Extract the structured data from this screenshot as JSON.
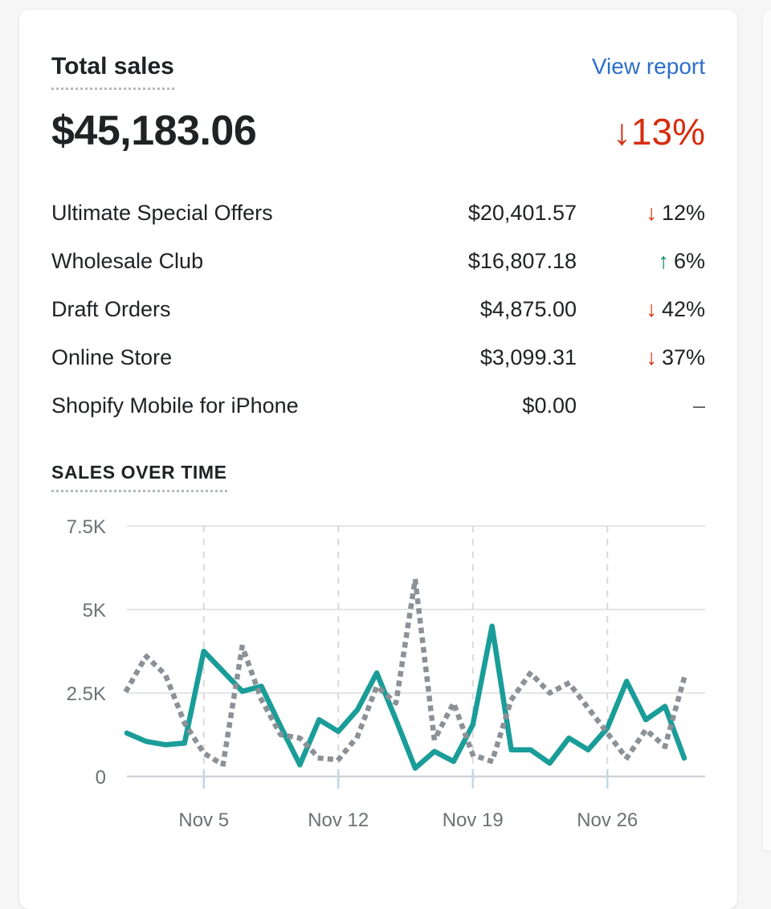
{
  "header": {
    "title": "Total sales",
    "link": "View report"
  },
  "summary": {
    "value": "$45,183.06",
    "arrow": "↓",
    "pct": "13%",
    "trend": "down"
  },
  "rows": [
    {
      "label": "Ultimate Special Offers",
      "value": "$20,401.57",
      "arrow": "↓",
      "pct": "12%",
      "trend": "down"
    },
    {
      "label": "Wholesale Club",
      "value": "$16,807.18",
      "arrow": "↑",
      "pct": "6%",
      "trend": "up"
    },
    {
      "label": "Draft Orders",
      "value": "$4,875.00",
      "arrow": "↓",
      "pct": "42%",
      "trend": "down"
    },
    {
      "label": "Online Store",
      "value": "$3,099.31",
      "arrow": "↓",
      "pct": "37%",
      "trend": "down"
    },
    {
      "label": "Shopify Mobile for iPhone",
      "value": "$0.00",
      "arrow": "",
      "pct": "–",
      "trend": "none"
    }
  ],
  "section": {
    "title": "SALES OVER TIME"
  },
  "colors": {
    "text": "#202223",
    "link": "#2c6ecb",
    "negative": "#d72c0d",
    "positive": "#008060",
    "axis_label": "#6d7175",
    "gridline": "#e4e5e7",
    "axis_line": "#d0d3d7",
    "vertical_gridline": "#d7d9dd",
    "tick": "#bfd9e4",
    "current_line": "#1a9d98",
    "previous_line": "#8b9196"
  },
  "chart_data": {
    "type": "line",
    "title": "SALES OVER TIME",
    "xlabel": "",
    "ylabel": "",
    "x_unit": "day of November",
    "x": [
      1,
      2,
      3,
      4,
      5,
      6,
      7,
      8,
      9,
      10,
      11,
      12,
      13,
      14,
      15,
      16,
      17,
      18,
      19,
      20,
      21,
      22,
      23,
      24,
      25,
      26,
      27,
      28,
      29,
      30
    ],
    "series": [
      {
        "name": "current-period-sales",
        "style": "solid",
        "color": "#1a9d98",
        "values": [
          1300,
          1050,
          950,
          1000,
          3750,
          3150,
          2550,
          2700,
          1500,
          350,
          1700,
          1350,
          2000,
          3100,
          1700,
          250,
          750,
          450,
          1550,
          4500,
          800,
          800,
          400,
          1150,
          800,
          1450,
          2850,
          1700,
          2100,
          550
        ]
      },
      {
        "name": "previous-period-sales",
        "style": "dotted",
        "color": "#8b9196",
        "values": [
          2600,
          3600,
          3050,
          1600,
          700,
          350,
          3900,
          2300,
          1250,
          1150,
          550,
          500,
          1200,
          2700,
          2200,
          5900,
          1100,
          2200,
          650,
          450,
          2300,
          3100,
          2500,
          2800,
          2050,
          1300,
          550,
          1400,
          900,
          2950
        ]
      }
    ],
    "xticks": [
      {
        "day": 5,
        "label": "Nov 5"
      },
      {
        "day": 12,
        "label": "Nov 12"
      },
      {
        "day": 19,
        "label": "Nov 19"
      },
      {
        "day": 26,
        "label": "Nov 26"
      }
    ],
    "yticks": [
      {
        "value": 0,
        "label": "0"
      },
      {
        "value": 2500,
        "label": "2.5K"
      },
      {
        "value": 5000,
        "label": "5K"
      },
      {
        "value": 7500,
        "label": "7.5K"
      }
    ],
    "ylim": [
      0,
      7500
    ],
    "grid": true,
    "legend": "none"
  }
}
